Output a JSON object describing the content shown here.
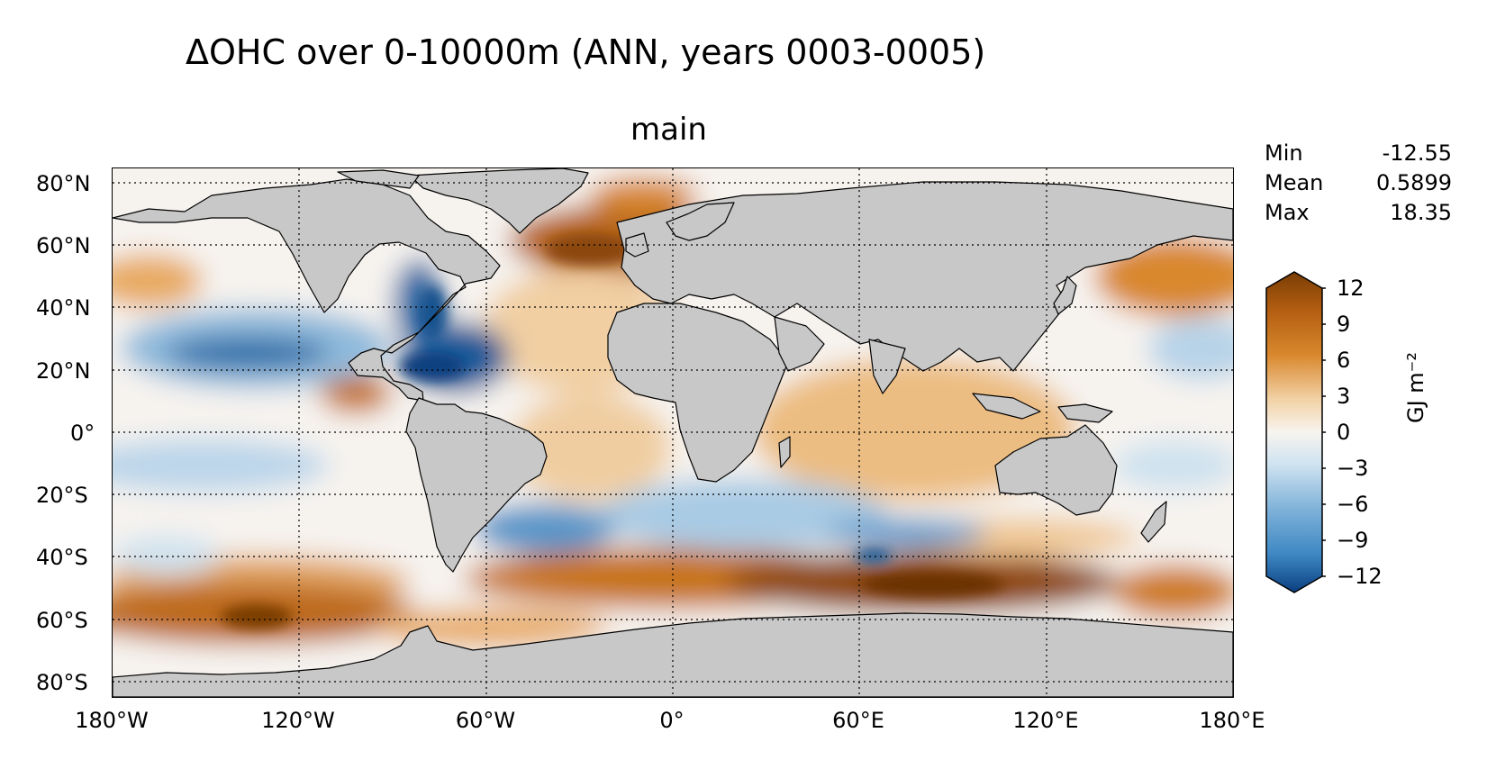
{
  "title": "ΔOHC over 0-10000m (ANN, years 0003-0005)",
  "subtitle": "main",
  "stats": [
    {
      "label": "Min",
      "value": "-12.55"
    },
    {
      "label": "Mean",
      "value": "0.5899"
    },
    {
      "label": "Max",
      "value": "18.35"
    }
  ],
  "colorbar": {
    "ticks": [
      "12",
      "9",
      "6",
      "3",
      "0",
      "−3",
      "−6",
      "−9",
      "−12"
    ],
    "units": "GJ m⁻²",
    "range": [
      -12,
      12
    ],
    "colors": {
      "neg_strong": "#0b3f80",
      "neg_mid": "#3e88c4",
      "neg_light": "#cfe3f0",
      "zero": "#f7f4ef",
      "pos_light": "#f2d3a8",
      "pos_mid": "#d9882e",
      "pos_strong": "#7a3d05"
    }
  },
  "axes": {
    "lat_labels": [
      "80°N",
      "60°N",
      "40°N",
      "20°N",
      "0°",
      "20°S",
      "40°S",
      "60°S",
      "80°S"
    ],
    "lon_labels": [
      "180°W",
      "120°W",
      "60°W",
      "0°",
      "60°E",
      "120°E",
      "180°E"
    ]
  },
  "map_colors": {
    "land": "#c8c8c8",
    "coast": "#000000",
    "grid": "#000000"
  }
}
